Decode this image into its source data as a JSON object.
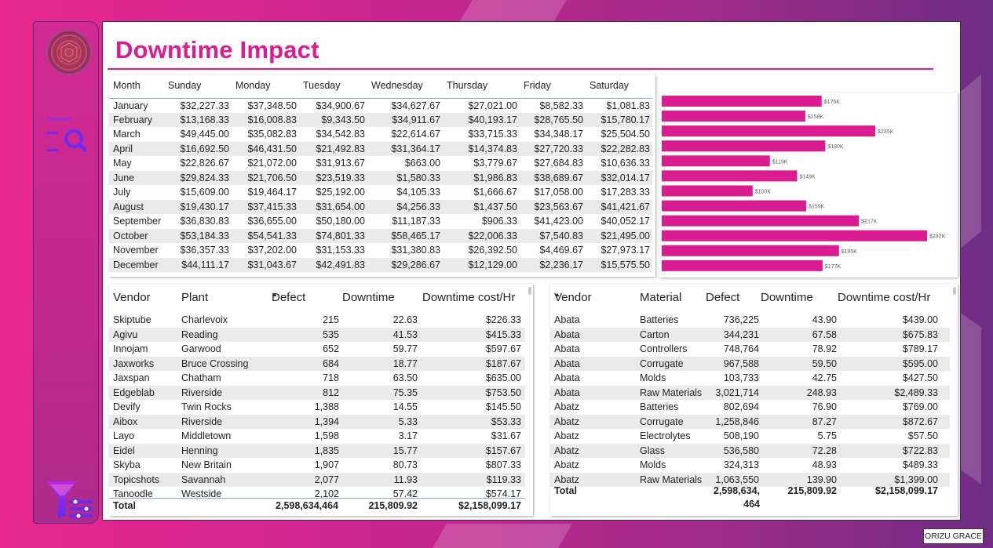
{
  "page": {
    "title": "Downtime Impact",
    "credit": "ORIZU GRACE"
  },
  "colors": {
    "accent": "#d91c8f",
    "bar": "#d91c8f"
  },
  "nav": {
    "icons": [
      "logo",
      "search-icon",
      "filter-icon"
    ]
  },
  "matrix": {
    "headers": [
      "Month",
      "Sunday",
      "Monday",
      "Tuesday",
      "Wednesday",
      "Thursday",
      "Friday",
      "Saturday"
    ],
    "rows": [
      [
        "January",
        "$32,227.33",
        "$37,348.50",
        "$34,900.67",
        "$34,627.67",
        "$27,021.00",
        "$8,582.33",
        "$1,081.83"
      ],
      [
        "February",
        "$13,168.33",
        "$16,008.83",
        "$9,343.50",
        "$34,911.67",
        "$40,193.17",
        "$28,765.50",
        "$15,780.17"
      ],
      [
        "March",
        "$49,445.00",
        "$35,082.83",
        "$34,542.83",
        "$22,614.67",
        "$33,715.33",
        "$34,348.17",
        "$25,504.50"
      ],
      [
        "April",
        "$16,692.50",
        "$46,431.50",
        "$21,492.83",
        "$31,364.17",
        "$14,374.83",
        "$27,720.33",
        "$22,282.83"
      ],
      [
        "May",
        "$22,826.67",
        "$21,072.00",
        "$31,913.67",
        "$663.00",
        "$3,779.67",
        "$27,684.83",
        "$10,636.33"
      ],
      [
        "June",
        "$29,824.33",
        "$21,706.50",
        "$23,519.33",
        "$1,580.33",
        "$1,986.83",
        "$38,689.67",
        "$32,014.17"
      ],
      [
        "July",
        "$15,609.00",
        "$19,464.17",
        "$25,192.00",
        "$4,105.33",
        "$1,666.67",
        "$17,058.00",
        "$17,283.33"
      ],
      [
        "August",
        "$19,430.17",
        "$37,415.33",
        "$31,654.00",
        "$4,256.33",
        "$1,437.50",
        "$23,563.67",
        "$41,421.67"
      ],
      [
        "September",
        "$36,830.83",
        "$36,655.00",
        "$50,180.00",
        "$11,187.33",
        "$906.33",
        "$41,423.00",
        "$40,052.17"
      ],
      [
        "October",
        "$53,184.33",
        "$54,541.33",
        "$74,801.33",
        "$58,465.17",
        "$22,006.33",
        "$7,540.83",
        "$21,495.00"
      ],
      [
        "November",
        "$36,357.33",
        "$37,202.00",
        "$31,153.33",
        "$31,380.83",
        "$26,392.50",
        "$4,469.67",
        "$27,973.17"
      ],
      [
        "December",
        "$44,111.17",
        "$31,043.67",
        "$42,491.83",
        "$29,286.67",
        "$12,129.00",
        "$2,236.17",
        "$15,575.50"
      ]
    ]
  },
  "chart_data": {
    "type": "bar",
    "categories": [
      "January",
      "February",
      "March",
      "April",
      "May",
      "June",
      "July",
      "August",
      "September",
      "October",
      "November",
      "December"
    ],
    "values": [
      176,
      158,
      235,
      180,
      119,
      149,
      100,
      159,
      217,
      292,
      195,
      177
    ],
    "labels": [
      "$176K",
      "$158K",
      "$235K",
      "$180K",
      "$119K",
      "$149K",
      "$100K",
      "$159K",
      "$217K",
      "$292K",
      "$195K",
      "$177K"
    ],
    "xlim": [
      0,
      292
    ]
  },
  "vendor_plant": {
    "headers": [
      "Vendor",
      "Plant",
      "Defect",
      "Downtime",
      "Downtime cost/Hr"
    ],
    "sort_indicator": "▲",
    "rows": [
      [
        "Skiptube",
        "Charlevoix",
        "215",
        "22.63",
        "$226.33"
      ],
      [
        "Agivu",
        "Reading",
        "535",
        "41.53",
        "$415.33"
      ],
      [
        "Innojam",
        "Garwood",
        "652",
        "59.77",
        "$597.67"
      ],
      [
        "Jaxworks",
        "Bruce Crossing",
        "684",
        "18.77",
        "$187.67"
      ],
      [
        "Jaxspan",
        "Chatham",
        "718",
        "63.50",
        "$635.00"
      ],
      [
        "Edgeblab",
        "Riverside",
        "812",
        "75.35",
        "$753.50"
      ],
      [
        "Devify",
        "Twin Rocks",
        "1,388",
        "14.55",
        "$145.50"
      ],
      [
        "Aibox",
        "Riverside",
        "1,394",
        "5.33",
        "$53.33"
      ],
      [
        "Layo",
        "Middletown",
        "1,598",
        "3.17",
        "$31.67"
      ],
      [
        "Eidel",
        "Henning",
        "1,835",
        "15.77",
        "$157.67"
      ],
      [
        "Skyba",
        "New Britain",
        "1,907",
        "80.73",
        "$807.33"
      ],
      [
        "Topicshots",
        "Savannah",
        "2,077",
        "11.93",
        "$119.33"
      ],
      [
        "Tanoodle",
        "Westside",
        "2,102",
        "57.42",
        "$574.17"
      ]
    ],
    "total": {
      "label": "Total",
      "defect": "2,598,634,464",
      "downtime": "215,809.92",
      "cost": "$2,158,099.17"
    }
  },
  "vendor_material": {
    "headers": [
      "Vendor",
      "Material",
      "Defect",
      "Downtime",
      "Downtime cost/Hr"
    ],
    "sort_indicator": "▲",
    "rows": [
      [
        "Abata",
        "Batteries",
        "736,225",
        "43.90",
        "$439.00"
      ],
      [
        "Abata",
        "Carton",
        "344,231",
        "67.58",
        "$675.83"
      ],
      [
        "Abata",
        "Controllers",
        "748,764",
        "78.92",
        "$789.17"
      ],
      [
        "Abata",
        "Corrugate",
        "967,588",
        "59.50",
        "$595.00"
      ],
      [
        "Abata",
        "Molds",
        "103,733",
        "42.75",
        "$427.50"
      ],
      [
        "Abata",
        "Raw Materials",
        "3,021,714",
        "248.93",
        "$2,489.33"
      ],
      [
        "Abatz",
        "Batteries",
        "802,694",
        "76.90",
        "$769.00"
      ],
      [
        "Abatz",
        "Corrugate",
        "1,258,846",
        "87.27",
        "$872.67"
      ],
      [
        "Abatz",
        "Electrolytes",
        "508,190",
        "5.75",
        "$57.50"
      ],
      [
        "Abatz",
        "Glass",
        "536,580",
        "72.28",
        "$722.83"
      ],
      [
        "Abatz",
        "Molds",
        "324,313",
        "48.93",
        "$489.33"
      ],
      [
        "Abatz",
        "Raw Materials",
        "1,063,550",
        "139.90",
        "$1,399.00"
      ]
    ],
    "total": {
      "label": "Total",
      "defect_line1": "2,598,634,",
      "defect_line2": "464",
      "downtime": "215,809.92",
      "cost": "$2,158,099.17"
    }
  }
}
